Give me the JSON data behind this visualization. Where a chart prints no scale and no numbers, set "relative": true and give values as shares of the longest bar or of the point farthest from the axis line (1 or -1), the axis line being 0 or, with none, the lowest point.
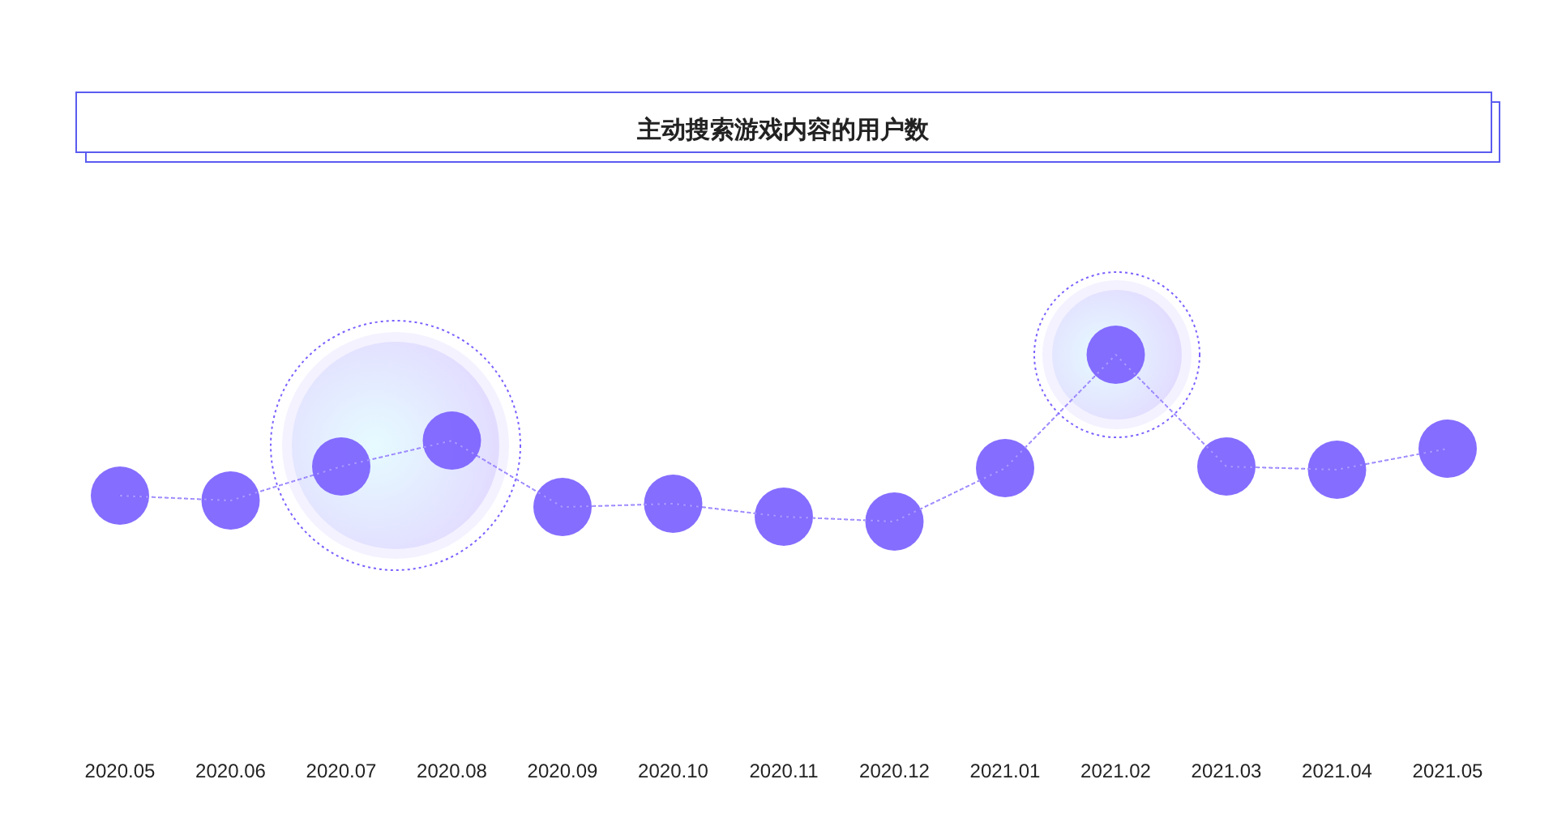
{
  "chart_data": {
    "type": "line",
    "title": "主动搜索游戏内容的用户数",
    "categories": [
      "2020.05",
      "2020.06",
      "2020.07",
      "2020.08",
      "2020.09",
      "2020.10",
      "2020.11",
      "2020.12",
      "2021.01",
      "2021.02",
      "2021.03",
      "2021.04",
      "2021.05"
    ],
    "series": [
      {
        "color": "#7b61ff",
        "values": [
          0.155,
          0.126,
          0.33,
          0.485,
          0.087,
          0.107,
          0.029,
          0,
          0.32,
          1,
          0.33,
          0.311,
          0.437
        ]
      }
    ],
    "relative": true,
    "marker": "circle",
    "line_style": "dotted"
  }
}
